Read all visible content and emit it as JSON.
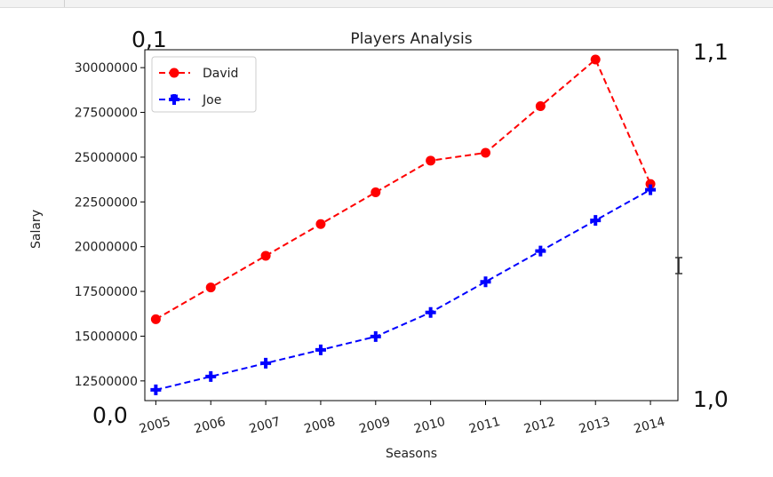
{
  "chart_data": {
    "type": "line",
    "title": "Players Analysis",
    "xlabel": "Seasons",
    "ylabel": "Salary",
    "x": [
      2005,
      2006,
      2007,
      2008,
      2009,
      2010,
      2011,
      2012,
      2013,
      2014
    ],
    "x_tick_labels": [
      "2005",
      "2006",
      "2007",
      "2008",
      "2009",
      "2010",
      "2011",
      "2012",
      "2013",
      "2014"
    ],
    "y_ticks": [
      12500000,
      15000000,
      17500000,
      20000000,
      22500000,
      25000000,
      27500000,
      30000000
    ],
    "y_tick_labels": [
      "12500000",
      "15000000",
      "17500000",
      "20000000",
      "22500000",
      "25000000",
      "27500000",
      "30000000"
    ],
    "xlim": [
      2004.8,
      2014.5
    ],
    "ylim": [
      11400000,
      31000000
    ],
    "grid": false,
    "legend_position": "top-left",
    "series": [
      {
        "name": "David",
        "color": "#ff0000",
        "marker": "circle",
        "linestyle": "dashed",
        "values": [
          15946875,
          17718750,
          19490625,
          21262500,
          23034375,
          24806250,
          25244493,
          27849149,
          30453805,
          23500000
        ]
      },
      {
        "name": "Joe",
        "color": "#0000ff",
        "marker": "plus",
        "linestyle": "dashed",
        "values": [
          12000000,
          12744189,
          13488377,
          14232567,
          14976754,
          16324500,
          18038573,
          19752645,
          21466718,
          23180790
        ]
      }
    ]
  },
  "annotations": {
    "top_left": "0,1",
    "top_right": "1,1",
    "bottom_left": "0,0",
    "bottom_right": "1,0"
  }
}
